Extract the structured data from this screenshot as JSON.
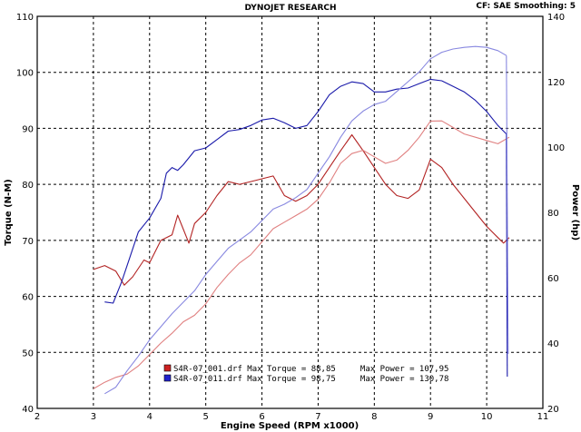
{
  "header": {
    "title": "DYNOJET RESEARCH",
    "settings": "CF: SAE  Smoothing: 5"
  },
  "chart_data": {
    "type": "line",
    "title": "DYNOJET RESEARCH",
    "xlabel": "Engine Speed (RPM x1000)",
    "ylabel_left": "Torque (N-M)",
    "ylabel_right": "Power (hp)",
    "xlim": [
      2,
      11
    ],
    "ylim_left": [
      40,
      110
    ],
    "ylim_right": [
      20,
      140
    ],
    "x_ticks": [
      "2",
      "3",
      "4",
      "5",
      "6",
      "7",
      "8",
      "9",
      "10",
      "11"
    ],
    "y_ticks_left": [
      "40",
      "50",
      "60",
      "70",
      "80",
      "90",
      "100",
      "110"
    ],
    "y_ticks_right": [
      "20",
      "40",
      "60",
      "80",
      "100",
      "120",
      "140"
    ],
    "grid": true,
    "colors": {
      "run1": "#b22222",
      "run1_power": "#e08080",
      "run2": "#1a1aaa",
      "run2_power": "#8888e0"
    },
    "legend": [
      {
        "text": "S4R-07_001.drf Max Torque = 88,85     Max Power = 107,95",
        "color": "#b22222"
      },
      {
        "text": "S4R-07_011.drf Max Torque = 98,75     Max Power = 130,78",
        "color": "#1a1aaa"
      }
    ],
    "series": [
      {
        "name": "S4R-07_001.drf",
        "measure": "torque",
        "axis": "left",
        "color": "#b22222",
        "x": [
          3.0,
          3.2,
          3.4,
          3.55,
          3.7,
          3.9,
          4.0,
          4.2,
          4.4,
          4.5,
          4.6,
          4.7,
          4.8,
          5.0,
          5.2,
          5.4,
          5.6,
          5.8,
          6.0,
          6.2,
          6.4,
          6.6,
          6.8,
          7.0,
          7.2,
          7.4,
          7.6,
          7.8,
          8.0,
          8.2,
          8.4,
          8.6,
          8.8,
          9.0,
          9.2,
          9.4,
          9.6,
          9.8,
          10.0,
          10.2,
          10.3,
          10.4
        ],
        "y": [
          64.8,
          65.5,
          64.5,
          62.0,
          63.5,
          66.5,
          66.0,
          70.0,
          71.0,
          74.5,
          72.0,
          69.5,
          73.0,
          75.0,
          78.0,
          80.5,
          80.0,
          80.5,
          81.0,
          81.5,
          78.0,
          77.0,
          78.0,
          80.0,
          83.0,
          86.0,
          88.85,
          86.0,
          83.0,
          80.0,
          78.0,
          77.5,
          79.0,
          84.5,
          83.0,
          80.0,
          77.5,
          75.0,
          72.5,
          70.5,
          69.5,
          70.5
        ]
      },
      {
        "name": "S4R-07_001.drf",
        "measure": "power",
        "axis": "right",
        "color": "#e08080",
        "x": [
          3.0,
          3.2,
          3.4,
          3.6,
          3.8,
          4.0,
          4.2,
          4.4,
          4.6,
          4.8,
          5.0,
          5.2,
          5.4,
          5.6,
          5.8,
          6.0,
          6.2,
          6.4,
          6.6,
          6.8,
          7.0,
          7.2,
          7.4,
          7.6,
          7.8,
          8.0,
          8.2,
          8.4,
          8.6,
          8.8,
          9.0,
          9.2,
          9.4,
          9.6,
          9.8,
          10.0,
          10.2,
          10.4
        ],
        "y": [
          26.0,
          28.0,
          29.5,
          30.5,
          33.0,
          36.5,
          40.0,
          43.0,
          46.5,
          48.5,
          52.0,
          57.0,
          61.0,
          64.5,
          67.0,
          71.0,
          75.0,
          77.0,
          79.0,
          81.0,
          84.0,
          89.0,
          95.0,
          98.0,
          99.0,
          97.0,
          95.0,
          96.0,
          99.0,
          103.0,
          107.95,
          108.0,
          106.0,
          104.0,
          103.0,
          102.0,
          101.0,
          103.0
        ]
      },
      {
        "name": "S4R-07_011.drf",
        "measure": "torque",
        "axis": "left",
        "color": "#1a1aaa",
        "x": [
          3.2,
          3.35,
          3.5,
          3.65,
          3.8,
          4.0,
          4.2,
          4.3,
          4.4,
          4.5,
          4.6,
          4.8,
          5.0,
          5.2,
          5.4,
          5.6,
          5.8,
          6.0,
          6.2,
          6.4,
          6.6,
          6.8,
          7.0,
          7.2,
          7.4,
          7.6,
          7.8,
          8.0,
          8.2,
          8.4,
          8.6,
          8.8,
          9.0,
          9.2,
          9.4,
          9.6,
          9.8,
          10.0,
          10.2,
          10.3,
          10.35
        ],
        "y": [
          59.0,
          58.8,
          62.5,
          67.0,
          71.5,
          74.0,
          77.5,
          82.0,
          83.0,
          82.5,
          83.5,
          86.0,
          86.5,
          88.0,
          89.5,
          89.8,
          90.5,
          91.5,
          91.8,
          91.0,
          90.0,
          90.5,
          93.0,
          96.0,
          97.5,
          98.3,
          98.0,
          96.5,
          96.5,
          97.0,
          97.2,
          98.0,
          98.75,
          98.5,
          97.5,
          96.5,
          95.0,
          93.0,
          90.5,
          89.5,
          89.0
        ]
      },
      {
        "name": "S4R-07_011.drf",
        "measure": "power",
        "axis": "right",
        "color": "#8888e0",
        "x": [
          3.2,
          3.4,
          3.6,
          3.8,
          4.0,
          4.2,
          4.4,
          4.6,
          4.8,
          5.0,
          5.2,
          5.4,
          5.6,
          5.8,
          6.0,
          6.2,
          6.4,
          6.6,
          6.8,
          7.0,
          7.2,
          7.4,
          7.6,
          7.8,
          8.0,
          8.2,
          8.4,
          8.6,
          8.8,
          9.0,
          9.2,
          9.4,
          9.6,
          9.8,
          10.0,
          10.2,
          10.35
        ],
        "y": [
          24.5,
          26.5,
          31.5,
          36.0,
          41.0,
          45.0,
          49.0,
          52.5,
          56.0,
          61.0,
          65.0,
          69.0,
          71.5,
          74.0,
          77.5,
          81.0,
          82.5,
          84.5,
          87.0,
          92.0,
          97.0,
          103.0,
          108.0,
          111.0,
          113.0,
          114.0,
          117.0,
          120.0,
          123.0,
          127.0,
          129.0,
          130.0,
          130.5,
          130.78,
          130.5,
          129.5,
          128.0
        ]
      }
    ]
  }
}
